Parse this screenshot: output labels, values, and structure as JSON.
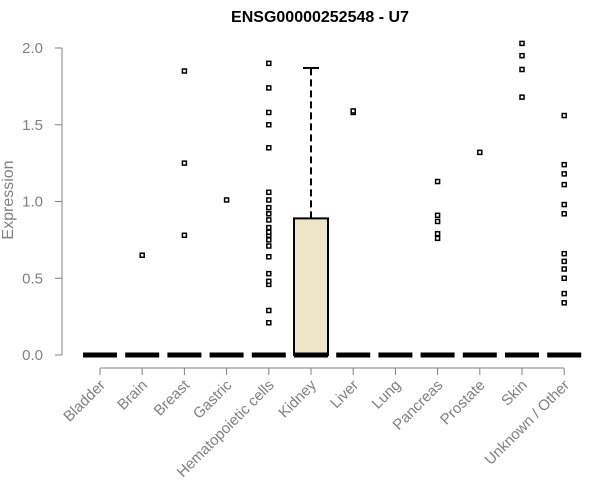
{
  "chart_data": {
    "type": "boxplot",
    "title": "ENSG00000252548 - U7",
    "xlabel": "",
    "ylabel": "Expression",
    "ylim": [
      0,
      2.0
    ],
    "yticks": [
      "0.0",
      "0.5",
      "1.0",
      "1.5",
      "2.0"
    ],
    "grid": false,
    "legend": "none",
    "colors": {
      "box_fill": "#ede6c9",
      "stroke": "#000000",
      "axis_text": "#808080"
    },
    "categories": [
      "Bladder",
      "Brain",
      "Breast",
      "Gastric",
      "Hematopoietic cells",
      "Kidney",
      "Liver",
      "Lung",
      "Pancreas",
      "Prostate",
      "Skin",
      "Unknown / Other"
    ],
    "boxes": [
      {
        "category": "Bladder",
        "min": 0,
        "q1": 0,
        "median": 0,
        "q3": 0,
        "max": 0,
        "outliers": []
      },
      {
        "category": "Brain",
        "min": 0,
        "q1": 0,
        "median": 0,
        "q3": 0,
        "max": 0,
        "outliers": [
          0.65
        ]
      },
      {
        "category": "Breast",
        "min": 0,
        "q1": 0,
        "median": 0,
        "q3": 0,
        "max": 0,
        "outliers": [
          0.78,
          1.25,
          1.85
        ]
      },
      {
        "category": "Gastric",
        "min": 0,
        "q1": 0,
        "median": 0,
        "q3": 0,
        "max": 0,
        "outliers": [
          1.01
        ]
      },
      {
        "category": "Hematopoietic cells",
        "min": 0,
        "q1": 0,
        "median": 0,
        "q3": 0,
        "max": 0,
        "outliers": [
          0.21,
          0.29,
          0.46,
          0.48,
          0.53,
          0.64,
          0.71,
          0.75,
          0.78,
          0.8,
          0.83,
          0.88,
          0.92,
          0.96,
          1.01,
          1.06,
          1.35,
          1.5,
          1.58,
          1.74,
          1.9
        ]
      },
      {
        "category": "Kidney",
        "min": 0,
        "q1": 0,
        "median": 0,
        "q3": 0.89,
        "max": 1.87,
        "outliers": []
      },
      {
        "category": "Liver",
        "min": 0,
        "q1": 0,
        "median": 0,
        "q3": 0,
        "max": 0,
        "outliers": [
          1.58,
          1.59
        ]
      },
      {
        "category": "Lung",
        "min": 0,
        "q1": 0,
        "median": 0,
        "q3": 0,
        "max": 0,
        "outliers": []
      },
      {
        "category": "Pancreas",
        "min": 0,
        "q1": 0,
        "median": 0,
        "q3": 0,
        "max": 0,
        "outliers": [
          0.76,
          0.79,
          0.87,
          0.91,
          1.13
        ]
      },
      {
        "category": "Prostate",
        "min": 0,
        "q1": 0,
        "median": 0,
        "q3": 0,
        "max": 0,
        "outliers": [
          1.32
        ]
      },
      {
        "category": "Skin",
        "min": 0,
        "q1": 0,
        "median": 0,
        "q3": 0,
        "max": 0,
        "outliers": [
          1.68,
          1.86,
          1.95,
          2.03
        ]
      },
      {
        "category": "Unknown / Other",
        "min": 0,
        "q1": 0,
        "median": 0,
        "q3": 0,
        "max": 0,
        "outliers": [
          0.34,
          0.4,
          0.5,
          0.56,
          0.61,
          0.66,
          0.92,
          0.98,
          1.11,
          1.18,
          1.24,
          1.56
        ]
      }
    ]
  }
}
